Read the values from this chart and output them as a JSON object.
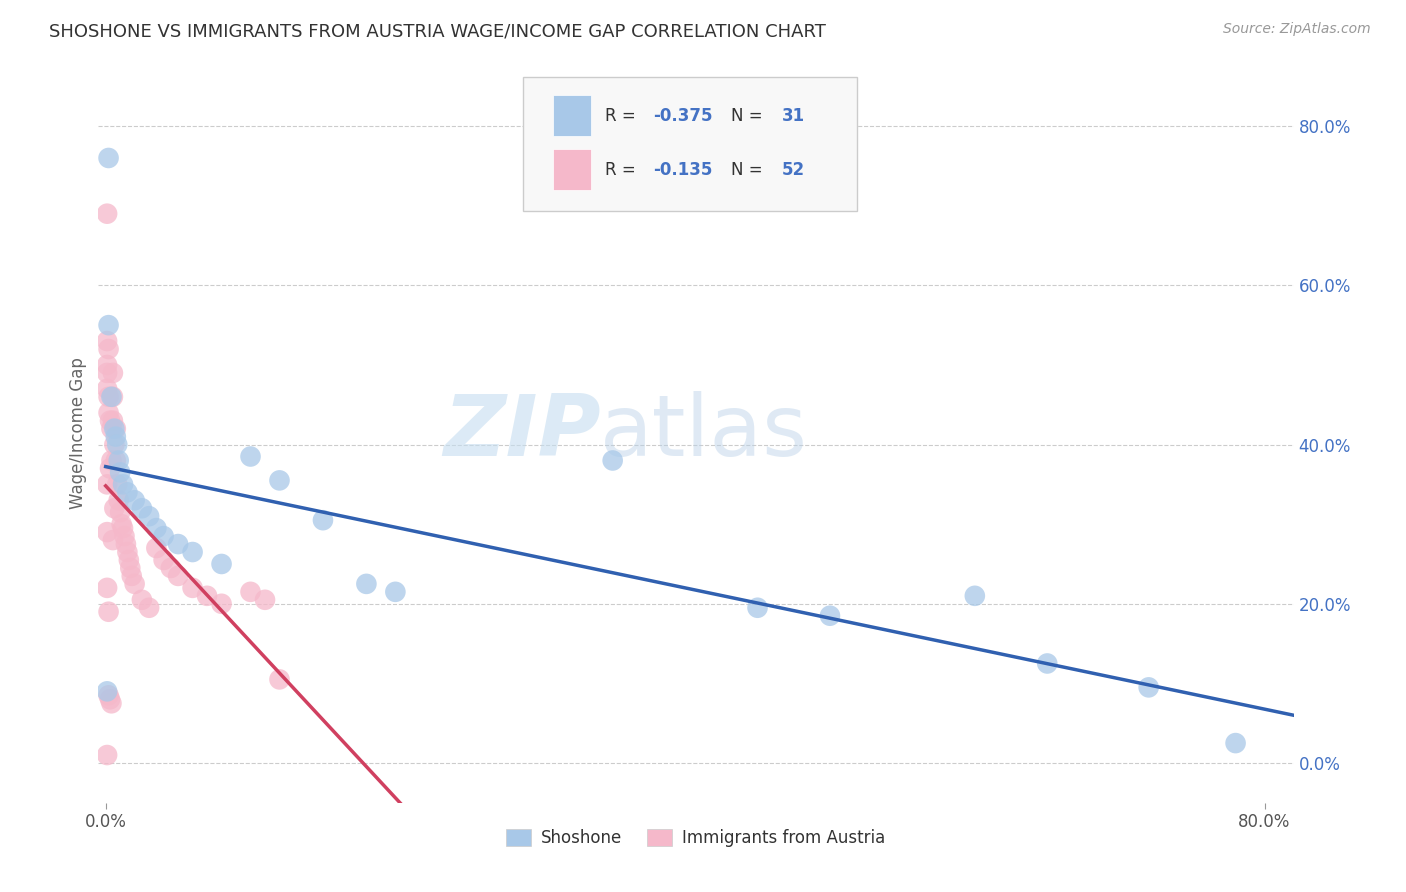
{
  "title": "SHOSHONE VS IMMIGRANTS FROM AUSTRIA WAGE/INCOME GAP CORRELATION CHART",
  "source": "Source: ZipAtlas.com",
  "ylabel": "Wage/Income Gap",
  "legend_label1": "Shoshone",
  "legend_label2": "Immigrants from Austria",
  "R1": -0.375,
  "N1": 31,
  "R2": -0.135,
  "N2": 52,
  "shoshone_color": "#a8c8e8",
  "austria_color": "#f5b8ca",
  "shoshone_line_color": "#3060b0",
  "austria_line_color": "#d04060",
  "shoshone_x": [
    0.002,
    0.002,
    0.004,
    0.006,
    0.007,
    0.008,
    0.009,
    0.01,
    0.012,
    0.015,
    0.02,
    0.025,
    0.03,
    0.035,
    0.04,
    0.05,
    0.06,
    0.08,
    0.1,
    0.12,
    0.15,
    0.18,
    0.2,
    0.35,
    0.45,
    0.5,
    0.6,
    0.65,
    0.72,
    0.78,
    0.001
  ],
  "shoshone_y": [
    0.76,
    0.55,
    0.46,
    0.42,
    0.41,
    0.4,
    0.38,
    0.365,
    0.35,
    0.34,
    0.33,
    0.32,
    0.31,
    0.295,
    0.285,
    0.275,
    0.265,
    0.25,
    0.385,
    0.355,
    0.305,
    0.225,
    0.215,
    0.38,
    0.195,
    0.185,
    0.21,
    0.125,
    0.095,
    0.025,
    0.09
  ],
  "austria_x": [
    0.001,
    0.001,
    0.001,
    0.001,
    0.001,
    0.001,
    0.001,
    0.001,
    0.002,
    0.002,
    0.002,
    0.002,
    0.002,
    0.003,
    0.003,
    0.003,
    0.004,
    0.004,
    0.004,
    0.005,
    0.005,
    0.005,
    0.005,
    0.006,
    0.006,
    0.007,
    0.007,
    0.008,
    0.009,
    0.01,
    0.011,
    0.012,
    0.013,
    0.014,
    0.015,
    0.016,
    0.017,
    0.018,
    0.02,
    0.025,
    0.03,
    0.035,
    0.04,
    0.045,
    0.05,
    0.06,
    0.07,
    0.08,
    0.1,
    0.11,
    0.12,
    0.001
  ],
  "austria_y": [
    0.53,
    0.5,
    0.49,
    0.47,
    0.35,
    0.29,
    0.22,
    0.01,
    0.52,
    0.46,
    0.44,
    0.19,
    0.085,
    0.43,
    0.37,
    0.08,
    0.42,
    0.38,
    0.075,
    0.49,
    0.46,
    0.43,
    0.28,
    0.4,
    0.32,
    0.42,
    0.38,
    0.35,
    0.33,
    0.315,
    0.3,
    0.295,
    0.285,
    0.275,
    0.265,
    0.255,
    0.245,
    0.235,
    0.225,
    0.205,
    0.195,
    0.27,
    0.255,
    0.245,
    0.235,
    0.22,
    0.21,
    0.2,
    0.215,
    0.205,
    0.105,
    0.69
  ],
  "xlim": [
    -0.005,
    0.82
  ],
  "ylim": [
    -0.05,
    0.88
  ],
  "ytick_vals": [
    0.0,
    0.2,
    0.4,
    0.6,
    0.8
  ],
  "right_ytick_labels": [
    "0.0%",
    "20.0%",
    "40.0%",
    "60.0%",
    "80.0%"
  ],
  "background_color": "#ffffff",
  "grid_color": "#cccccc"
}
